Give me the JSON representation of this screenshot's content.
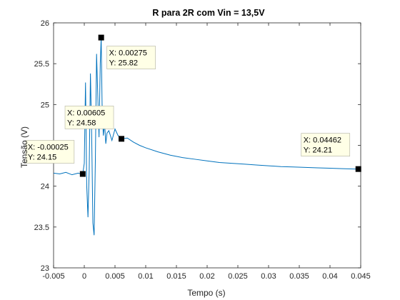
{
  "chart_data": {
    "type": "line",
    "title": "R para 2R com Vin = 13,5V",
    "xlabel": "Tempo (s)",
    "ylabel": "Tensão (V)",
    "xlim": [
      -0.005,
      0.045
    ],
    "ylim": [
      23,
      26
    ],
    "xticks": [
      -0.005,
      0,
      0.005,
      0.01,
      0.015,
      0.02,
      0.025,
      0.03,
      0.035,
      0.04,
      0.045
    ],
    "xtick_labels": [
      "-0.005",
      "0",
      "0.005",
      "0.01",
      "0.015",
      "0.02",
      "0.025",
      "0.03",
      "0.035",
      "0.04",
      "0.045"
    ],
    "yticks": [
      23,
      23.5,
      24,
      24.5,
      25,
      25.5,
      26
    ],
    "ytick_labels": [
      "23",
      "23.5",
      "24",
      "24.5",
      "25",
      "25.5",
      "26"
    ],
    "grid": false,
    "series_color": "#0072BD",
    "series": [
      {
        "x": [
          -0.005,
          -0.004,
          -0.003,
          -0.002,
          -0.001,
          -0.0005,
          -0.00025,
          0.0,
          0.0002,
          0.0004,
          0.0006,
          0.0008,
          0.001,
          0.0012,
          0.0014,
          0.0016,
          0.0018,
          0.002,
          0.0022,
          0.0024,
          0.0026,
          0.00275,
          0.0029,
          0.0031,
          0.0033,
          0.0035,
          0.0037,
          0.004,
          0.0045,
          0.005,
          0.0055,
          0.00605,
          0.007,
          0.008,
          0.009,
          0.01,
          0.012,
          0.014,
          0.016,
          0.018,
          0.02,
          0.022,
          0.024,
          0.026,
          0.028,
          0.03,
          0.032,
          0.034,
          0.036,
          0.038,
          0.04,
          0.042,
          0.044,
          0.04462
        ],
        "y": [
          24.16,
          24.15,
          24.17,
          24.14,
          24.16,
          24.15,
          24.15,
          24.28,
          25.27,
          24.0,
          23.62,
          24.2,
          25.38,
          24.65,
          23.55,
          23.4,
          24.3,
          25.62,
          25.1,
          24.6,
          25.5,
          25.82,
          25.0,
          24.62,
          24.78,
          24.52,
          24.65,
          24.68,
          24.56,
          24.7,
          24.62,
          24.58,
          24.59,
          24.54,
          24.5,
          24.47,
          24.42,
          24.38,
          24.35,
          24.33,
          24.31,
          24.29,
          24.28,
          24.27,
          24.26,
          24.25,
          24.24,
          24.235,
          24.23,
          24.225,
          24.22,
          24.215,
          24.21,
          24.21
        ]
      }
    ],
    "datatips": [
      {
        "x": -0.00025,
        "y": 24.15,
        "x_label": "X: -0.00025",
        "y_label": "Y: 24.15"
      },
      {
        "x": 0.00275,
        "y": 25.82,
        "x_label": "X: 0.00275",
        "y_label": "Y: 25.82"
      },
      {
        "x": 0.00605,
        "y": 24.58,
        "x_label": "X: 0.00605",
        "y_label": "Y: 24.58"
      },
      {
        "x": 0.04462,
        "y": 24.21,
        "x_label": "X: 0.04462",
        "y_label": "Y: 24.21"
      }
    ]
  }
}
